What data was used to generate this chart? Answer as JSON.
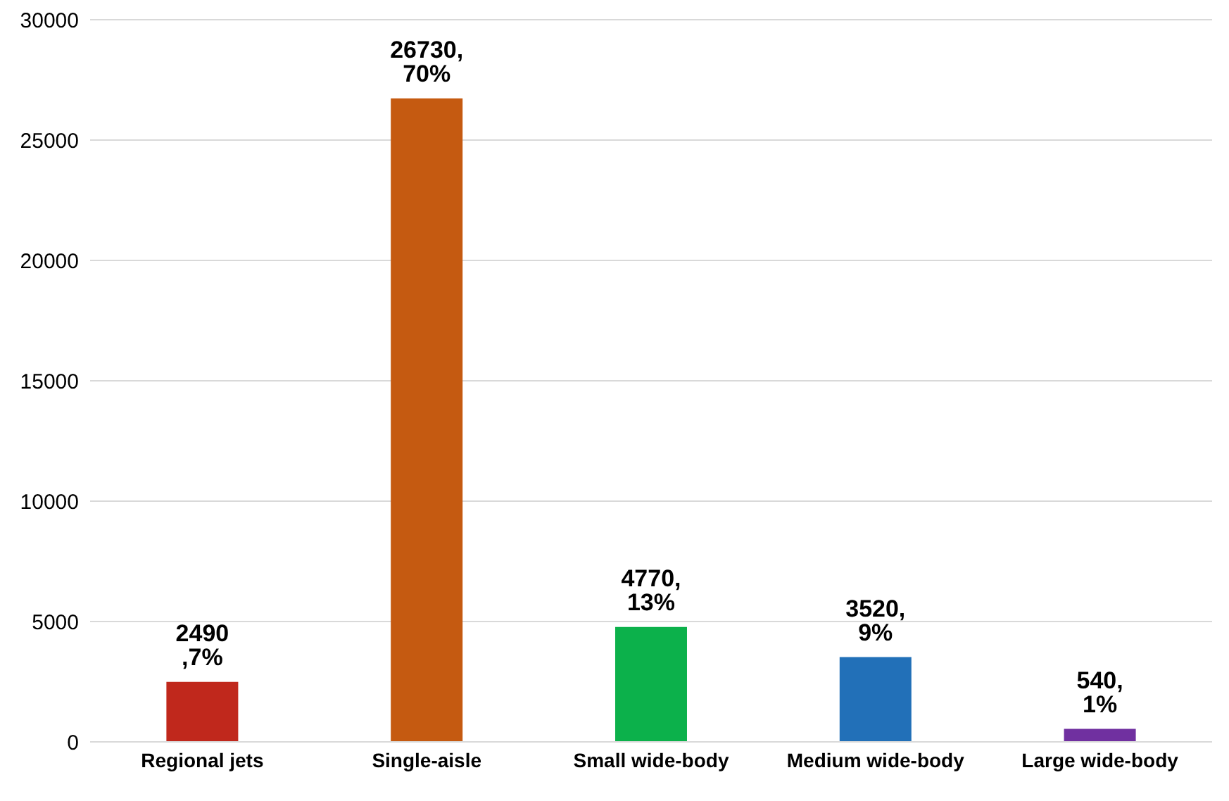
{
  "chart_data": {
    "type": "bar",
    "categories": [
      "Regional jets",
      "Single-aisle",
      "Small wide-body",
      "Medium wide-body",
      "Large wide-body"
    ],
    "values": [
      2490,
      26730,
      4770,
      3520,
      540
    ],
    "colors": [
      "#c0281c",
      "#c55a11",
      "#0cb14b",
      "#2270b8",
      "#7030a0"
    ],
    "value_labels": [
      "2490 ,7%",
      "26730, 70%",
      "4770, 13%",
      "3520, 9%",
      "540, 1%"
    ],
    "ylim": [
      0,
      30000
    ],
    "yticks": [
      0,
      5000,
      10000,
      15000,
      20000,
      25000,
      30000
    ],
    "grid": "y"
  }
}
